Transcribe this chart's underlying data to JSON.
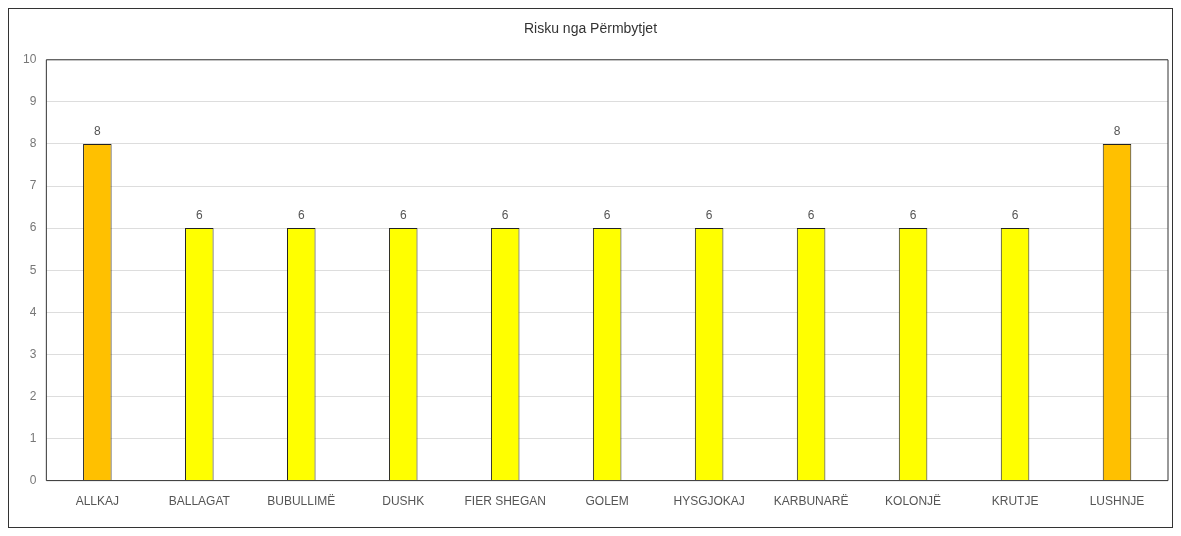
{
  "chart_data": {
    "type": "bar",
    "title": "Risku nga Përmbytjet",
    "categories": [
      "ALLKAJ",
      "BALLAGAT",
      "BUBULLIMË",
      "DUSHK",
      "FIER SHEGAN",
      "GOLEM",
      "HYSGJOKAJ",
      "KARBUNARË",
      "KOLONJË",
      "KRUTJE",
      "LUSHNJE"
    ],
    "values": [
      8,
      6,
      6,
      6,
      6,
      6,
      6,
      6,
      6,
      6,
      8
    ],
    "colors": [
      "#ffc000",
      "#ffff00",
      "#ffff00",
      "#ffff00",
      "#ffff00",
      "#ffff00",
      "#ffff00",
      "#ffff00",
      "#ffff00",
      "#ffff00",
      "#ffc000"
    ],
    "ylim": [
      0,
      10
    ],
    "yticks": [
      0,
      1,
      2,
      3,
      4,
      5,
      6,
      7,
      8,
      9,
      10
    ],
    "grid": "y",
    "data_labels": true,
    "legend": false
  }
}
